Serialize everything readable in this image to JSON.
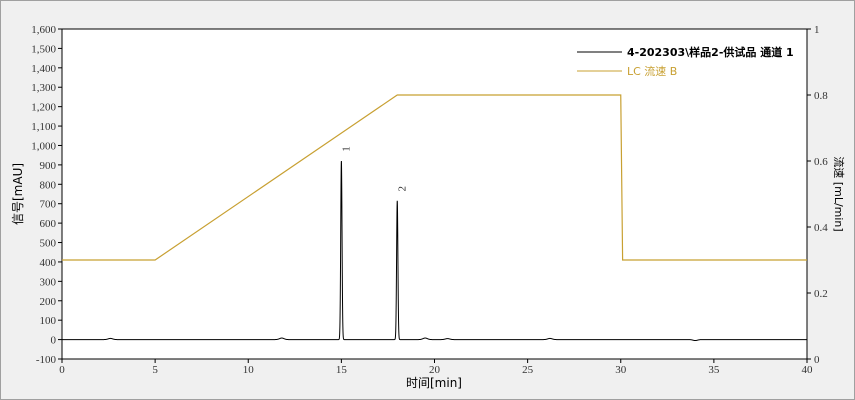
{
  "chart_data": {
    "type": "line",
    "xlabel": "时间[min]",
    "ylabel": "信号[mAU]",
    "y2label": "流速 [mL/min]",
    "xlim": [
      0,
      40
    ],
    "ylim": [
      -100,
      1600
    ],
    "y2lim": [
      0,
      1
    ],
    "xticks": [
      0,
      5,
      10,
      15,
      20,
      25,
      30,
      35,
      40
    ],
    "yticks": [
      -100,
      0,
      100,
      200,
      300,
      400,
      500,
      600,
      700,
      800,
      900,
      1000,
      1100,
      1200,
      1300,
      1400,
      1500,
      1600
    ],
    "ytick_labels": [
      "-100",
      "0",
      "100",
      "200",
      "300",
      "400",
      "500",
      "600",
      "700",
      "800",
      "900",
      "1,000",
      "1,100",
      "1,200",
      "1,300",
      "1,400",
      "1,500",
      "1,600"
    ],
    "y2ticks": [
      0,
      0.2,
      0.4,
      0.6,
      0.8,
      1
    ],
    "y2tick_labels": [
      "0",
      "0.2",
      "0.4",
      "0.6",
      "0.8",
      "1"
    ],
    "grid": false,
    "legend_position": "top-right",
    "series": [
      {
        "name": "4-202303\\样品2-供试品 通道 1",
        "color": "#000000",
        "axis": "left",
        "baseline": 0,
        "peaks": [
          {
            "label": "1",
            "x": 15.0,
            "y": 920
          },
          {
            "label": "2",
            "x": 18.0,
            "y": 715
          }
        ],
        "minor_bumps": [
          {
            "x": 2.6,
            "y": 6
          },
          {
            "x": 11.8,
            "y": 8
          },
          {
            "x": 19.5,
            "y": 8
          },
          {
            "x": 20.7,
            "y": 5
          },
          {
            "x": 26.2,
            "y": 6
          },
          {
            "x": 34.0,
            "y": -5
          }
        ]
      },
      {
        "name": "LC 流速 B",
        "color": "#c8a032",
        "axis": "right",
        "x": [
          0,
          5,
          18,
          30,
          30.1,
          40
        ],
        "y": [
          0.3,
          0.3,
          0.8,
          0.8,
          0.3,
          0.3
        ]
      }
    ]
  }
}
